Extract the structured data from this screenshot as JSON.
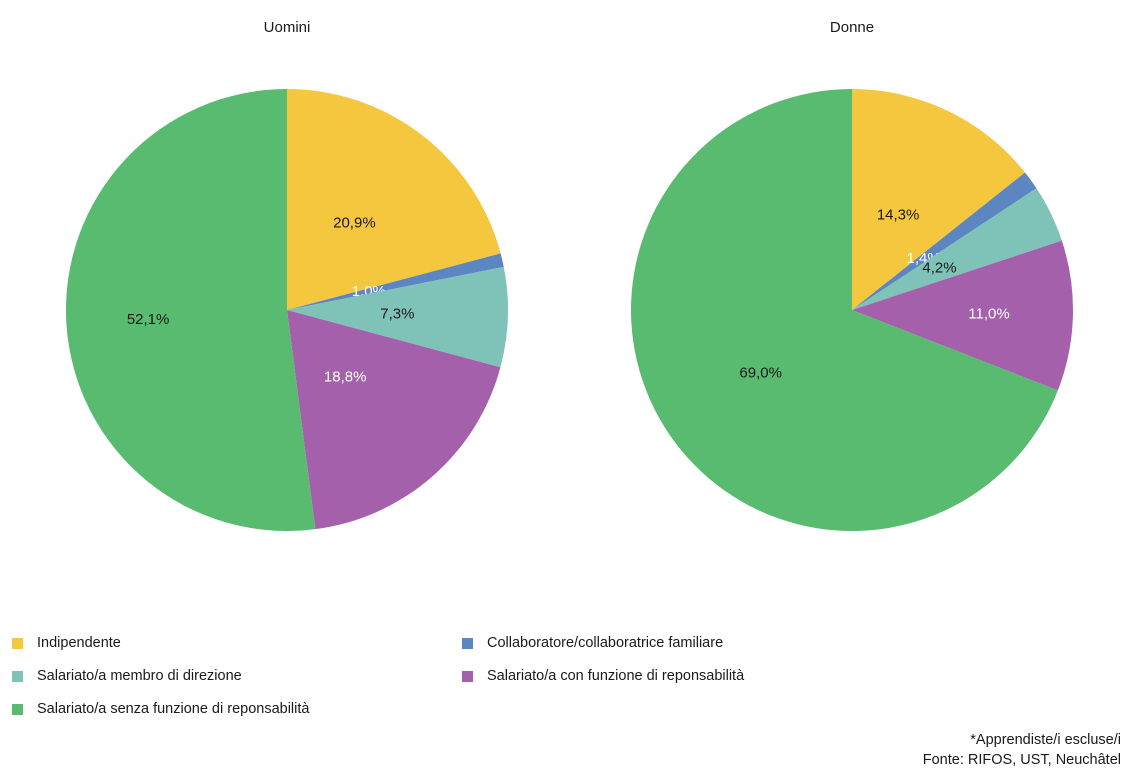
{
  "chart_data": [
    {
      "type": "pie",
      "title": "Uomini",
      "slices": [
        {
          "key": "indipendente",
          "label": "20,9%",
          "value": 20.9
        },
        {
          "key": "collaboratore",
          "label": "1,0%",
          "value": 1.0
        },
        {
          "key": "membro",
          "label": "7,3%",
          "value": 7.3
        },
        {
          "key": "responsabilita",
          "label": "18,8%",
          "value": 18.8
        },
        {
          "key": "senza",
          "label": "52,1%",
          "value": 52.1
        }
      ]
    },
    {
      "type": "pie",
      "title": "Donne",
      "slices": [
        {
          "key": "indipendente",
          "label": "14,3%",
          "value": 14.3
        },
        {
          "key": "collaboratore",
          "label": "1,4%",
          "value": 1.4
        },
        {
          "key": "membro",
          "label": "4,2%",
          "value": 4.2
        },
        {
          "key": "responsabilita",
          "label": "11,0%",
          "value": 11.0
        },
        {
          "key": "senza",
          "label": "69,0%",
          "value": 69.0
        }
      ]
    }
  ],
  "categories": {
    "indipendente": {
      "name": "Indipendente",
      "color": "#f4c73e",
      "label_color": "#1a1a1a"
    },
    "collaboratore": {
      "name": "Collaboratore/collaboratrice familiare",
      "color": "#5b86c2",
      "label_color": "#ffffff"
    },
    "membro": {
      "name": "Salariato/a membro di direzione",
      "color": "#7fc2b8",
      "label_color": "#1a1a1a"
    },
    "responsabilita": {
      "name": "Salariato/a con funzione di reponsabilità",
      "color": "#a560ac",
      "label_color": "#ffffff"
    },
    "senza": {
      "name": "Salariato/a senza funzione di reponsabilità",
      "color": "#58bb70",
      "label_color": "#1a1a1a"
    }
  },
  "legend_order": [
    "indipendente",
    "collaboratore",
    "membro",
    "responsabilita",
    "senza"
  ],
  "footnote": {
    "line1": "*Apprendiste/i escluse/i",
    "line2": "Fonte: RIFOS, UST, Neuchâtel"
  }
}
